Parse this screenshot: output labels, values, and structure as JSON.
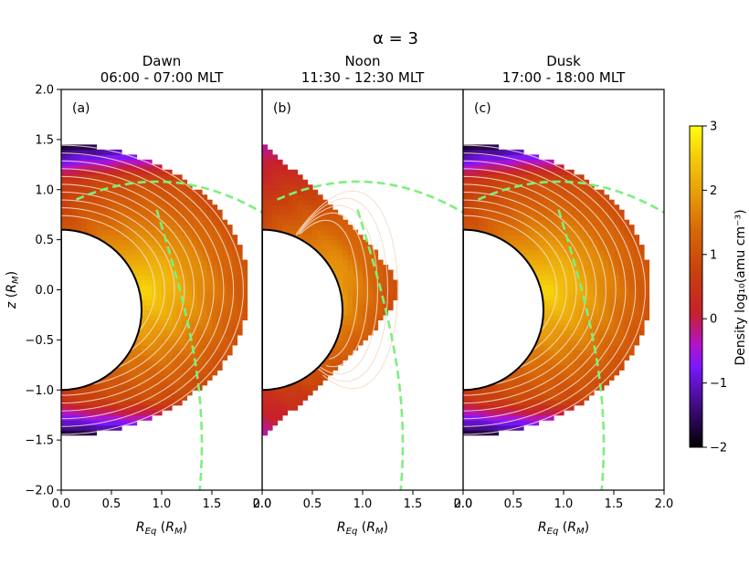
{
  "chart_data": [
    {
      "type": "heatmap",
      "suptitle": "α = 3",
      "panel_label": "(a)",
      "title_line1": "Dawn",
      "title_line2": "06:00 - 07:00 MLT",
      "xlabel": "R_Eq (R_M)",
      "ylabel": "z (R_M)",
      "xlim": [
        0.0,
        2.0
      ],
      "ylim": [
        -2.0,
        2.0
      ],
      "xticks": [
        "0.0",
        "0.5",
        "1.0",
        "1.5",
        "2.0"
      ],
      "yticks": [
        "−2.0",
        "−1.5",
        "−1.0",
        "−0.5",
        "0.0",
        "0.5",
        "1.0",
        "1.5",
        "2.0"
      ],
      "planet_radius": 0.8,
      "planet_center_z": -0.2,
      "region": {
        "max_x": 1.87,
        "max_z": 1.45,
        "min_z": -1.45
      },
      "peak_density_log10": 2.6
    },
    {
      "type": "heatmap",
      "panel_label": "(b)",
      "title_line1": "Noon",
      "title_line2": "11:30 - 12:30 MLT",
      "xlabel": "R_Eq (R_M)",
      "xlim": [
        0.0,
        2.0
      ],
      "ylim": [
        -2.0,
        2.0
      ],
      "xticks": [
        "0.0",
        "0.5",
        "1.0",
        "1.5",
        "2.0"
      ],
      "planet_radius": 0.8,
      "planet_center_z": -0.2,
      "region": {
        "max_x": 1.37,
        "max_z": 1.45,
        "min_z": -1.45
      },
      "peak_density_log10": 2.4
    },
    {
      "type": "heatmap",
      "panel_label": "(c)",
      "title_line1": "Dusk",
      "title_line2": "17:00 - 18:00 MLT",
      "xlabel": "R_Eq (R_M)",
      "xlim": [
        0.0,
        2.0
      ],
      "ylim": [
        -2.0,
        2.0
      ],
      "xticks": [
        "0.0",
        "0.5",
        "1.0",
        "1.5",
        "2.0"
      ],
      "planet_radius": 0.8,
      "planet_center_z": -0.2,
      "region": {
        "max_x": 1.87,
        "max_z": 1.45,
        "min_z": -1.45
      },
      "peak_density_log10": 2.6
    }
  ],
  "colorbar": {
    "label": "Density log₁₀(amu cm⁻³)",
    "min": -2,
    "max": 3,
    "ticks": [
      "−2",
      "−1",
      "0",
      "1",
      "2",
      "3"
    ],
    "colormap": "gnuplot"
  }
}
